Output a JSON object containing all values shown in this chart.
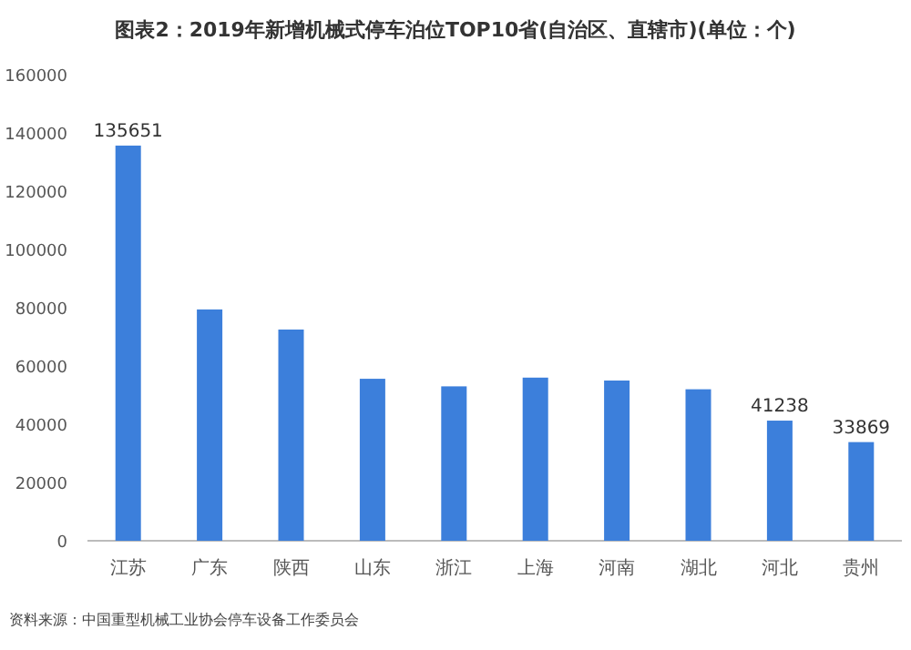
{
  "chart_data": {
    "type": "bar",
    "title": "图表2：2019年新增机械式停车泊位TOP10省(自治区、直辖市)(单位：个)",
    "categories": [
      "江苏",
      "广东",
      "陕西",
      "山东",
      "浙江",
      "上海",
      "河南",
      "湖北",
      "河北",
      "贵州"
    ],
    "values": [
      135651,
      79400,
      72500,
      55600,
      53000,
      56000,
      55000,
      52000,
      41238,
      33869
    ],
    "value_labels": [
      "135651",
      null,
      null,
      null,
      null,
      null,
      null,
      null,
      "41238",
      "33869"
    ],
    "color": "#3c7fdb",
    "ylim": [
      0,
      160000
    ],
    "yticks": [
      0,
      20000,
      40000,
      60000,
      80000,
      100000,
      120000,
      140000,
      160000
    ],
    "grid": false,
    "annotations": [
      "资料来源：中国重型机械工业协会停车设备工作委员会"
    ]
  }
}
